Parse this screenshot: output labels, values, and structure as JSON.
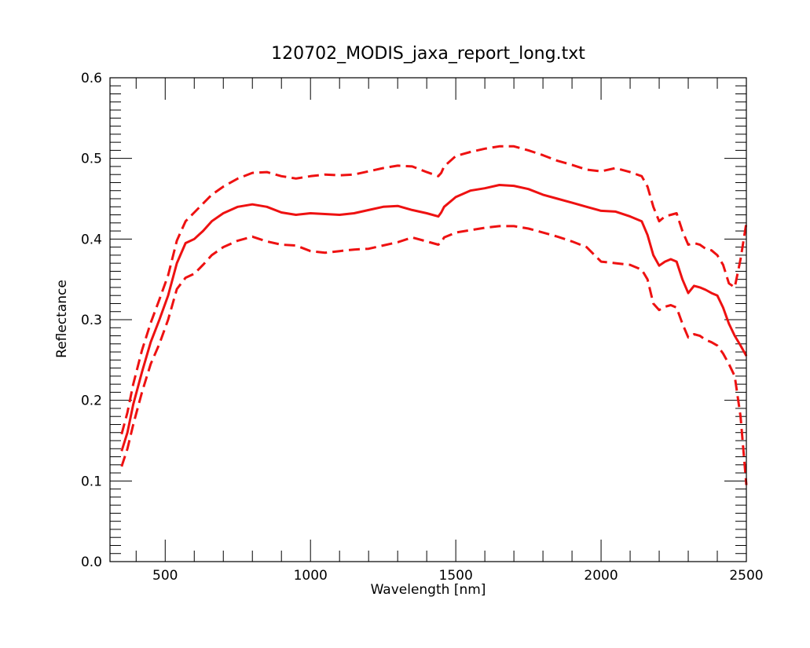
{
  "chart_data": {
    "type": "line",
    "title": "120702_MODIS_jaxa_report_long.txt",
    "xlabel": "Wavelength [nm]",
    "ylabel": "Reflectance",
    "xlim": [
      310,
      2500
    ],
    "ylim": [
      0.0,
      0.6
    ],
    "x_ticks": [
      500,
      1000,
      1500,
      2000,
      2500
    ],
    "x_tick_labels": [
      "500",
      "1000",
      "1500",
      "2000",
      "2500"
    ],
    "y_ticks": [
      0.0,
      0.1,
      0.2,
      0.3,
      0.4,
      0.5,
      0.6
    ],
    "y_tick_labels": [
      "0.0",
      "0.1",
      "0.2",
      "0.3",
      "0.4",
      "0.5",
      "0.6"
    ],
    "grid": false,
    "line_color": "#ee1111",
    "series": [
      {
        "style": "solid",
        "x": [
          350,
          370,
          390,
          420,
          450,
          480,
          510,
          540,
          570,
          600,
          630,
          660,
          700,
          750,
          800,
          850,
          900,
          950,
          1000,
          1050,
          1100,
          1150,
          1200,
          1250,
          1300,
          1350,
          1400,
          1440,
          1450,
          1460,
          1500,
          1550,
          1600,
          1650,
          1700,
          1750,
          1800,
          1850,
          1900,
          1950,
          2000,
          2050,
          2100,
          2140,
          2160,
          2180,
          2200,
          2220,
          2240,
          2260,
          2280,
          2300,
          2320,
          2340,
          2360,
          2380,
          2400,
          2420,
          2440,
          2460,
          2480,
          2500
        ],
        "values": [
          0.137,
          0.16,
          0.195,
          0.235,
          0.272,
          0.3,
          0.33,
          0.37,
          0.395,
          0.4,
          0.41,
          0.422,
          0.432,
          0.44,
          0.443,
          0.44,
          0.433,
          0.43,
          0.432,
          0.431,
          0.43,
          0.432,
          0.436,
          0.44,
          0.441,
          0.436,
          0.432,
          0.428,
          0.433,
          0.44,
          0.452,
          0.46,
          0.463,
          0.467,
          0.466,
          0.462,
          0.455,
          0.45,
          0.445,
          0.44,
          0.435,
          0.434,
          0.428,
          0.422,
          0.405,
          0.38,
          0.367,
          0.372,
          0.375,
          0.372,
          0.35,
          0.333,
          0.342,
          0.34,
          0.337,
          0.333,
          0.33,
          0.315,
          0.295,
          0.28,
          0.268,
          0.255
        ]
      },
      {
        "style": "dashed",
        "x": [
          350,
          370,
          390,
          420,
          450,
          480,
          510,
          540,
          570,
          600,
          630,
          660,
          700,
          750,
          800,
          850,
          900,
          950,
          1000,
          1050,
          1100,
          1150,
          1200,
          1250,
          1300,
          1350,
          1400,
          1440,
          1450,
          1460,
          1500,
          1550,
          1600,
          1650,
          1700,
          1750,
          1800,
          1850,
          1900,
          1950,
          2000,
          2050,
          2100,
          2140,
          2160,
          2180,
          2200,
          2220,
          2240,
          2260,
          2280,
          2300,
          2320,
          2340,
          2360,
          2380,
          2400,
          2420,
          2440,
          2460,
          2480,
          2500
        ],
        "values": [
          0.158,
          0.185,
          0.22,
          0.262,
          0.296,
          0.325,
          0.355,
          0.398,
          0.422,
          0.433,
          0.444,
          0.455,
          0.465,
          0.475,
          0.482,
          0.483,
          0.478,
          0.475,
          0.478,
          0.48,
          0.479,
          0.48,
          0.484,
          0.488,
          0.491,
          0.49,
          0.483,
          0.478,
          0.482,
          0.49,
          0.503,
          0.508,
          0.512,
          0.515,
          0.515,
          0.51,
          0.504,
          0.497,
          0.492,
          0.486,
          0.484,
          0.488,
          0.483,
          0.478,
          0.465,
          0.44,
          0.422,
          0.428,
          0.43,
          0.432,
          0.41,
          0.393,
          0.395,
          0.393,
          0.388,
          0.386,
          0.38,
          0.368,
          0.345,
          0.34,
          0.375,
          0.42
        ]
      },
      {
        "style": "dashed",
        "x": [
          350,
          370,
          390,
          420,
          450,
          480,
          510,
          540,
          570,
          600,
          630,
          660,
          700,
          750,
          800,
          850,
          900,
          950,
          1000,
          1050,
          1100,
          1150,
          1200,
          1250,
          1300,
          1350,
          1400,
          1440,
          1450,
          1460,
          1500,
          1550,
          1600,
          1650,
          1700,
          1750,
          1800,
          1850,
          1900,
          1950,
          2000,
          2050,
          2100,
          2140,
          2160,
          2180,
          2200,
          2220,
          2240,
          2260,
          2280,
          2300,
          2320,
          2340,
          2360,
          2380,
          2400,
          2420,
          2440,
          2460,
          2480,
          2500
        ],
        "values": [
          0.118,
          0.14,
          0.17,
          0.21,
          0.245,
          0.27,
          0.3,
          0.338,
          0.352,
          0.357,
          0.368,
          0.38,
          0.39,
          0.398,
          0.403,
          0.397,
          0.393,
          0.392,
          0.385,
          0.383,
          0.385,
          0.387,
          0.388,
          0.392,
          0.396,
          0.402,
          0.397,
          0.393,
          0.396,
          0.402,
          0.408,
          0.411,
          0.414,
          0.416,
          0.416,
          0.413,
          0.408,
          0.403,
          0.397,
          0.39,
          0.372,
          0.37,
          0.368,
          0.362,
          0.35,
          0.32,
          0.312,
          0.316,
          0.318,
          0.315,
          0.295,
          0.278,
          0.282,
          0.28,
          0.275,
          0.272,
          0.268,
          0.258,
          0.245,
          0.23,
          0.18,
          0.095
        ]
      }
    ]
  }
}
